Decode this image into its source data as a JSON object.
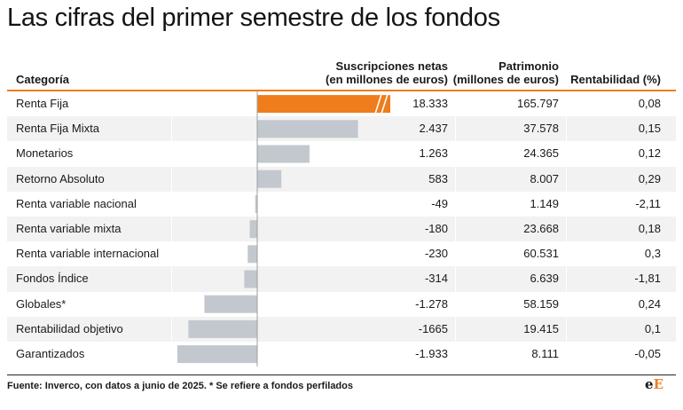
{
  "title": "Las cifras del primer semestre de los fondos",
  "headers": {
    "category": "Categoría",
    "subs_line1": "Suscripciones netas",
    "subs_line2": "(en millones de euros)",
    "pat_line1": "Patrimonio",
    "pat_line2": "(millones de euros)",
    "rent": "Rentabilidad (%)"
  },
  "colors": {
    "accent": "#ef7d1c",
    "bar": "#c3c8ce",
    "row_shade": "#f2f2f2"
  },
  "rows": [
    {
      "category": "Renta Fija",
      "subs": "18.333",
      "pat": "165.797",
      "rent": "0,08"
    },
    {
      "category": "Renta Fija Mixta",
      "subs": "2.437",
      "pat": "37.578",
      "rent": "0,15"
    },
    {
      "category": "Monetarios",
      "subs": "1.263",
      "pat": "24.365",
      "rent": "0,12"
    },
    {
      "category": "Retorno Absoluto",
      "subs": "583",
      "pat": "8.007",
      "rent": "0,29"
    },
    {
      "category": "Renta variable nacional",
      "subs": "-49",
      "pat": "1.149",
      "rent": "-2,11"
    },
    {
      "category": "Renta variable mixta",
      "subs": "-180",
      "pat": "23.668",
      "rent": "0,18"
    },
    {
      "category": "Renta variable internacional",
      "subs": "-230",
      "pat": "60.531",
      "rent": "0,3"
    },
    {
      "category": "Fondos Índice",
      "subs": "-314",
      "pat": "6.639",
      "rent": "-1,81"
    },
    {
      "category": "Globales*",
      "subs": "-1.278",
      "pat": "58.159",
      "rent": "0,24"
    },
    {
      "category": "Rentabilidad objetivo",
      "subs": "-1665",
      "pat": "19.415",
      "rent": "0,1"
    },
    {
      "category": "Garantizados",
      "subs": "-1.933",
      "pat": "8.111",
      "rent": "-0,05"
    }
  ],
  "chart_data": {
    "type": "bar",
    "categories": [
      "Renta Fija",
      "Renta Fija Mixta",
      "Monetarios",
      "Retorno Absoluto",
      "Renta variable nacional",
      "Renta variable mixta",
      "Renta variable internacional",
      "Fondos Índice",
      "Globales*",
      "Rentabilidad objetivo",
      "Garantizados"
    ],
    "values": [
      18333,
      2437,
      1263,
      583,
      -49,
      -180,
      -230,
      -314,
      -1278,
      -1665,
      -1933
    ],
    "broken_bar_category": "Renta Fija",
    "orientation": "horizontal",
    "xlabel": "",
    "ylabel": ""
  },
  "footer": "Fuente: Inverco, con datos a junio de 2025. * Se refiere a fondos perfilados",
  "logo": {
    "part1": "e",
    "part2": "E"
  }
}
